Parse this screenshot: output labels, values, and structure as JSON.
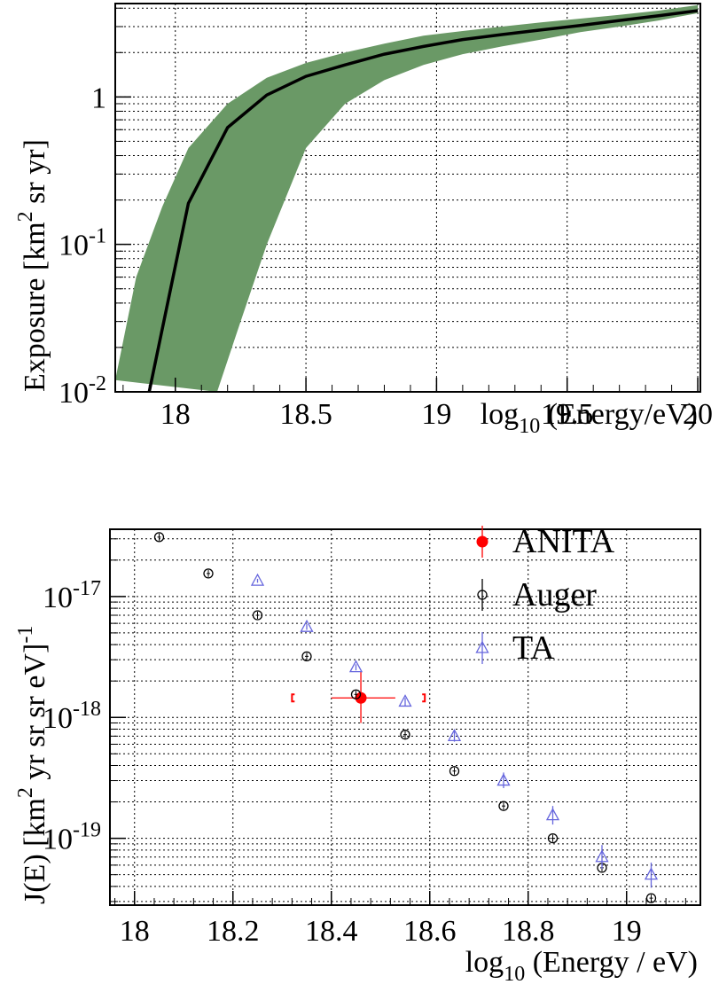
{
  "chart_data": [
    {
      "type": "area",
      "xlim": [
        17.77,
        20.01
      ],
      "ylim": [
        0.01,
        4.3
      ],
      "yscale": "log",
      "grid": true,
      "xticks": [
        {
          "value": 18,
          "label": "18"
        },
        {
          "value": 18.5,
          "label": "18.5"
        },
        {
          "value": 19,
          "label": "19"
        },
        {
          "value": 19.5,
          "label": "19.5"
        },
        {
          "value": 20,
          "label": "20"
        }
      ],
      "yticks": [
        {
          "value": 0.01,
          "base": "10",
          "exp": "-2"
        },
        {
          "value": 0.1,
          "base": "10",
          "exp": "-1"
        },
        {
          "value": 1,
          "base": "1",
          "exp": ""
        }
      ],
      "xlabel": {
        "pre": "log",
        "sub": "10",
        "post": " (Energy/eV)"
      },
      "ylabel": {
        "pre": "Exposure [km",
        "sup": "2",
        "post": " sr yr]"
      },
      "band_color": "#6a9966",
      "line_color": "#000000",
      "central": {
        "x": [
          17.9,
          18.05,
          18.2,
          18.35,
          18.5,
          18.65,
          18.8,
          18.95,
          19.1,
          19.25,
          19.4,
          19.55,
          19.7,
          19.85,
          20.0
        ],
        "y": [
          0.01,
          0.19,
          0.62,
          1.03,
          1.38,
          1.65,
          1.95,
          2.2,
          2.45,
          2.65,
          2.85,
          3.05,
          3.3,
          3.55,
          3.85
        ]
      },
      "band_upper": {
        "x": [
          17.77,
          17.85,
          17.95,
          18.05,
          18.2,
          18.35,
          18.5,
          18.65,
          18.8,
          18.95,
          19.1,
          19.25,
          19.4,
          19.55,
          19.7,
          19.85,
          20.0
        ],
        "y": [
          0.012,
          0.06,
          0.18,
          0.45,
          0.9,
          1.35,
          1.7,
          2.0,
          2.3,
          2.6,
          2.8,
          3.0,
          3.2,
          3.4,
          3.6,
          3.85,
          4.2
        ]
      },
      "band_lower": {
        "x": [
          18.16,
          18.25,
          18.35,
          18.5,
          18.65,
          18.8,
          18.95,
          19.1,
          19.25,
          19.4,
          19.55,
          19.7,
          19.85,
          20.0
        ],
        "y": [
          0.01,
          0.03,
          0.1,
          0.45,
          0.9,
          1.3,
          1.65,
          1.95,
          2.2,
          2.45,
          2.75,
          3.0,
          3.3,
          3.7
        ]
      }
    },
    {
      "type": "scatter",
      "xlim": [
        17.95,
        19.15
      ],
      "ylim": [
        2.8e-20,
        3.6e-17
      ],
      "yscale": "log",
      "grid": true,
      "legend_position": "top-right",
      "xticks": [
        {
          "value": 18,
          "label": "18"
        },
        {
          "value": 18.2,
          "label": "18.2"
        },
        {
          "value": 18.4,
          "label": "18.4"
        },
        {
          "value": 18.6,
          "label": "18.6"
        },
        {
          "value": 18.8,
          "label": "18.8"
        },
        {
          "value": 19,
          "label": "19"
        }
      ],
      "yticks": [
        {
          "value": 1e-17,
          "base": "10",
          "exp": "-17"
        },
        {
          "value": 1e-18,
          "base": "10",
          "exp": "-18"
        },
        {
          "value": 1e-19,
          "base": "10",
          "exp": "-19"
        }
      ],
      "xlabel": {
        "pre": "log",
        "sub": "10",
        "post": " (Energy / eV)"
      },
      "ylabel": {
        "pre": "J(E) [km",
        "sup": "2",
        "post": " yr sr sr eV]",
        "sup2": "-1"
      },
      "series": [
        {
          "name": "ANITA",
          "marker": "filled-circle",
          "color": "#ff0000",
          "points": [
            {
              "x": 18.46,
              "y": 1.45e-18,
              "xlo": 18.4,
              "xhi": 18.53,
              "ylo": 9e-19,
              "yhi": 2.4e-18
            }
          ],
          "systematic_brackets": {
            "x": [
              18.32,
              18.59
            ],
            "y": 1.45e-18
          }
        },
        {
          "name": "Auger",
          "marker": "open-circle",
          "color": "#000000",
          "points": [
            {
              "x": 18.05,
              "y": 3.1e-17
            },
            {
              "x": 18.15,
              "y": 1.55e-17
            },
            {
              "x": 18.25,
              "y": 7e-18
            },
            {
              "x": 18.35,
              "y": 3.2e-18
            },
            {
              "x": 18.45,
              "y": 1.55e-18
            },
            {
              "x": 18.55,
              "y": 7.2e-19
            },
            {
              "x": 18.65,
              "y": 3.6e-19
            },
            {
              "x": 18.75,
              "y": 1.85e-19
            },
            {
              "x": 18.85,
              "y": 1e-19
            },
            {
              "x": 18.95,
              "y": 5.7e-20
            },
            {
              "x": 19.05,
              "y": 3.2e-20
            }
          ]
        },
        {
          "name": "TA",
          "marker": "open-triangle",
          "color": "#6666dd",
          "points": [
            {
              "x": 18.25,
              "y": 1.35e-17,
              "ylo": 1.3e-17,
              "yhi": 1.4e-17
            },
            {
              "x": 18.35,
              "y": 5.6e-18,
              "ylo": 5.3e-18,
              "yhi": 5.9e-18
            },
            {
              "x": 18.45,
              "y": 2.6e-18,
              "ylo": 2.45e-18,
              "yhi": 2.75e-18
            },
            {
              "x": 18.55,
              "y": 1.35e-18,
              "ylo": 1.25e-18,
              "yhi": 1.45e-18
            },
            {
              "x": 18.65,
              "y": 7e-19,
              "ylo": 6.3e-19,
              "yhi": 7.8e-19
            },
            {
              "x": 18.75,
              "y": 3e-19,
              "ylo": 2.6e-19,
              "yhi": 3.5e-19
            },
            {
              "x": 18.85,
              "y": 1.55e-19,
              "ylo": 1.3e-19,
              "yhi": 1.85e-19
            },
            {
              "x": 18.95,
              "y": 7e-20,
              "ylo": 5.6e-20,
              "yhi": 8.8e-20
            },
            {
              "x": 19.05,
              "y": 5e-20,
              "ylo": 3.9e-20,
              "yhi": 6.3e-20
            }
          ]
        }
      ]
    }
  ]
}
